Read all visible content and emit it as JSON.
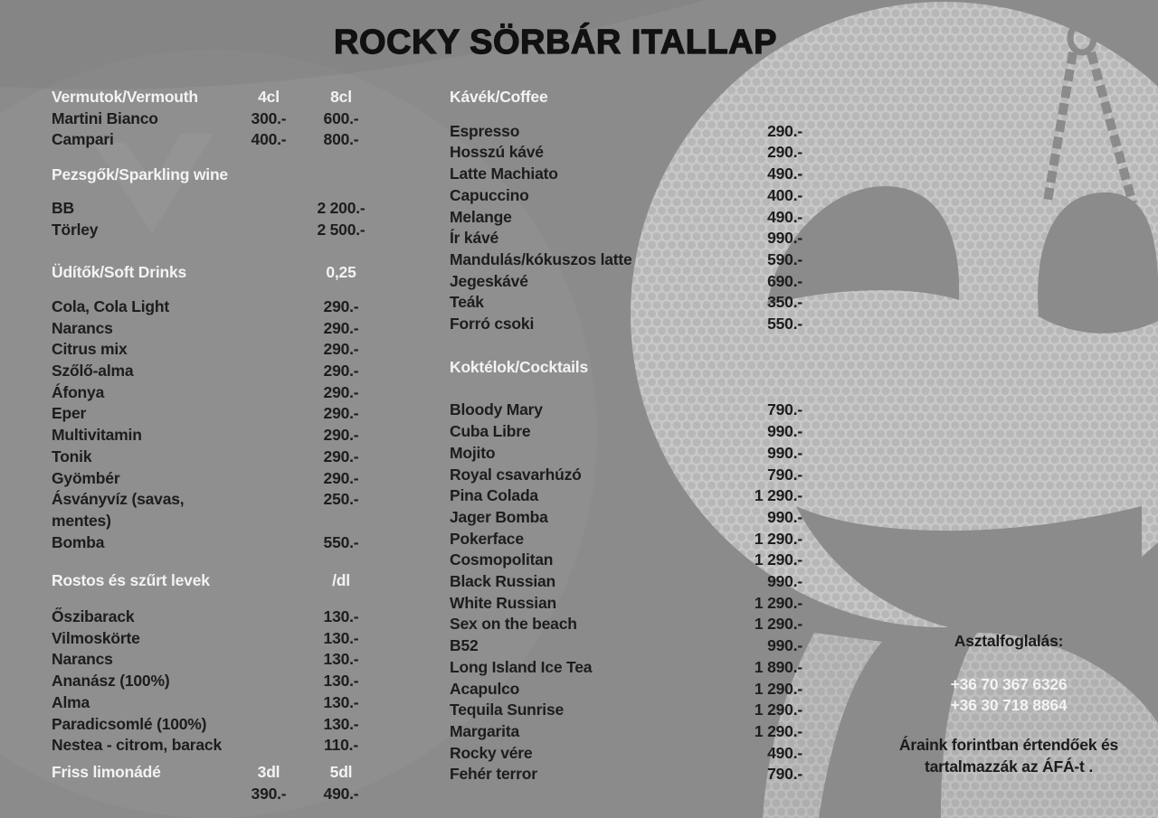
{
  "title": "ROCKY SÖRBÁR ITALLAP",
  "colors": {
    "background": "#8b8b8b",
    "section_header_text": "#f3f3f3",
    "item_text": "#1d1d1d",
    "title_text": "#111111",
    "halftone_light": "#c8c8c8"
  },
  "left_column": {
    "sections": [
      {
        "header": "Vermutok/Vermouth",
        "cols": [
          "4cl",
          "8cl"
        ],
        "items": [
          {
            "name": "Martini Bianco",
            "prices": [
              "300.-",
              "600.-"
            ]
          },
          {
            "name": "Campari",
            "prices": [
              "400.-",
              "800.-"
            ]
          }
        ]
      },
      {
        "header": "Pezsgők/Sparkling wine",
        "cols": [
          "",
          ""
        ],
        "items": [
          {
            "name": "BB",
            "prices": [
              "",
              "2 200.-"
            ]
          },
          {
            "name": "Törley",
            "prices": [
              "",
              "2 500.-"
            ]
          }
        ]
      },
      {
        "header": "Üdítők/Soft Drinks",
        "cols": [
          "",
          "0,25"
        ],
        "items": [
          {
            "name": "Cola, Cola Light",
            "prices": [
              "",
              "290.-"
            ]
          },
          {
            "name": "Narancs",
            "prices": [
              "",
              "290.-"
            ]
          },
          {
            "name": "Citrus mix",
            "prices": [
              "",
              "290.-"
            ]
          },
          {
            "name": "Szőlő-alma",
            "prices": [
              "",
              "290.-"
            ]
          },
          {
            "name": "Áfonya",
            "prices": [
              "",
              "290.-"
            ]
          },
          {
            "name": "Eper",
            "prices": [
              "",
              "290.-"
            ]
          },
          {
            "name": "Multivitamin",
            "prices": [
              "",
              "290.-"
            ]
          },
          {
            "name": "Tonik",
            "prices": [
              "",
              "290.-"
            ]
          },
          {
            "name": "Gyömbér",
            "prices": [
              "",
              "290.-"
            ]
          },
          {
            "name": "Ásványvíz (savas, mentes)",
            "prices": [
              "",
              "250.-"
            ]
          },
          {
            "name": "Bomba",
            "prices": [
              "",
              "550.-"
            ]
          }
        ]
      },
      {
        "header": "Rostos és szűrt levek",
        "cols": [
          "",
          "/dl"
        ],
        "items": [
          {
            "name": "Őszibarack",
            "prices": [
              "",
              "130.-"
            ]
          },
          {
            "name": "Vilmoskörte",
            "prices": [
              "",
              "130.-"
            ]
          },
          {
            "name": "Narancs",
            "prices": [
              "",
              "130.-"
            ]
          },
          {
            "name": "Ananász (100%)",
            "prices": [
              "",
              "130.-"
            ]
          },
          {
            "name": "Alma",
            "prices": [
              "",
              "130.-"
            ]
          },
          {
            "name": "Paradicsomlé (100%)",
            "prices": [
              "",
              "130.-"
            ]
          },
          {
            "name": "Nestea - citrom, barack",
            "prices": [
              "",
              "110.-"
            ]
          }
        ]
      },
      {
        "header": "Friss limonádé",
        "cols": [
          "3dl",
          "5dl"
        ],
        "items": [
          {
            "name": "",
            "prices": [
              "390.-",
              "490.-"
            ]
          }
        ]
      }
    ]
  },
  "middle_column": {
    "sections": [
      {
        "header": "Kávék/Coffee",
        "cols": [],
        "items": [
          {
            "name": "Espresso",
            "prices": [
              "290.-"
            ]
          },
          {
            "name": "Hosszú kávé",
            "prices": [
              "290.-"
            ]
          },
          {
            "name": "Latte Machiato",
            "prices": [
              "490.-"
            ]
          },
          {
            "name": "Capuccino",
            "prices": [
              "400.-"
            ]
          },
          {
            "name": "Melange",
            "prices": [
              "490.-"
            ]
          },
          {
            "name": "Ír kávé",
            "prices": [
              "990.-"
            ]
          },
          {
            "name": "Mandulás/kókuszos latte",
            "prices": [
              "590.-"
            ]
          },
          {
            "name": "Jegeskávé",
            "prices": [
              "690.-"
            ]
          },
          {
            "name": "Teák",
            "prices": [
              "350.-"
            ]
          },
          {
            "name": "Forró csoki",
            "prices": [
              "550.-"
            ]
          }
        ]
      },
      {
        "header": "Koktélok/Cocktails",
        "cols": [],
        "items": [
          {
            "name": "Bloody Mary",
            "prices": [
              "790.-"
            ]
          },
          {
            "name": "Cuba Libre",
            "prices": [
              "990.-"
            ]
          },
          {
            "name": "Mojito",
            "prices": [
              "990.-"
            ]
          },
          {
            "name": "Royal csavarhúzó",
            "prices": [
              "790.-"
            ]
          },
          {
            "name": "Pina Colada",
            "prices": [
              "1 290.-"
            ]
          },
          {
            "name": "Jager Bomba",
            "prices": [
              "990.-"
            ]
          },
          {
            "name": "Pokerface",
            "prices": [
              "1 290.-"
            ]
          },
          {
            "name": "Cosmopolitan",
            "prices": [
              "1 290.-"
            ]
          },
          {
            "name": "Black Russian",
            "prices": [
              "990.-"
            ]
          },
          {
            "name": "White Russian",
            "prices": [
              "1 290.-"
            ]
          },
          {
            "name": "Sex on the beach",
            "prices": [
              "1 290.-"
            ]
          },
          {
            "name": "B52",
            "prices": [
              "990.-"
            ]
          },
          {
            "name": "Long Island Ice Tea",
            "prices": [
              "1 890.-"
            ]
          },
          {
            "name": "Acapulco",
            "prices": [
              "1 290.-"
            ]
          },
          {
            "name": "Tequila Sunrise",
            "prices": [
              "1 290.-"
            ]
          },
          {
            "name": "Margarita",
            "prices": [
              "1 290.-"
            ]
          },
          {
            "name": "Rocky vére",
            "prices": [
              "490.-"
            ]
          },
          {
            "name": "Fehér terror",
            "prices": [
              "790.-"
            ]
          }
        ]
      }
    ]
  },
  "reservation": {
    "heading": "Asztalfoglalás:",
    "phones": [
      "+36 70 367 6326",
      "+36 30 718 8864"
    ],
    "note_lines": [
      "Áraink forintban értendőek és",
      "tartalmazzák az ÁFÁ-t ."
    ]
  },
  "artwork": {
    "elements": [
      "halftone-moon-circle",
      "punching-bag",
      "hanging-chains",
      "man-with-hat-silhouette"
    ]
  }
}
